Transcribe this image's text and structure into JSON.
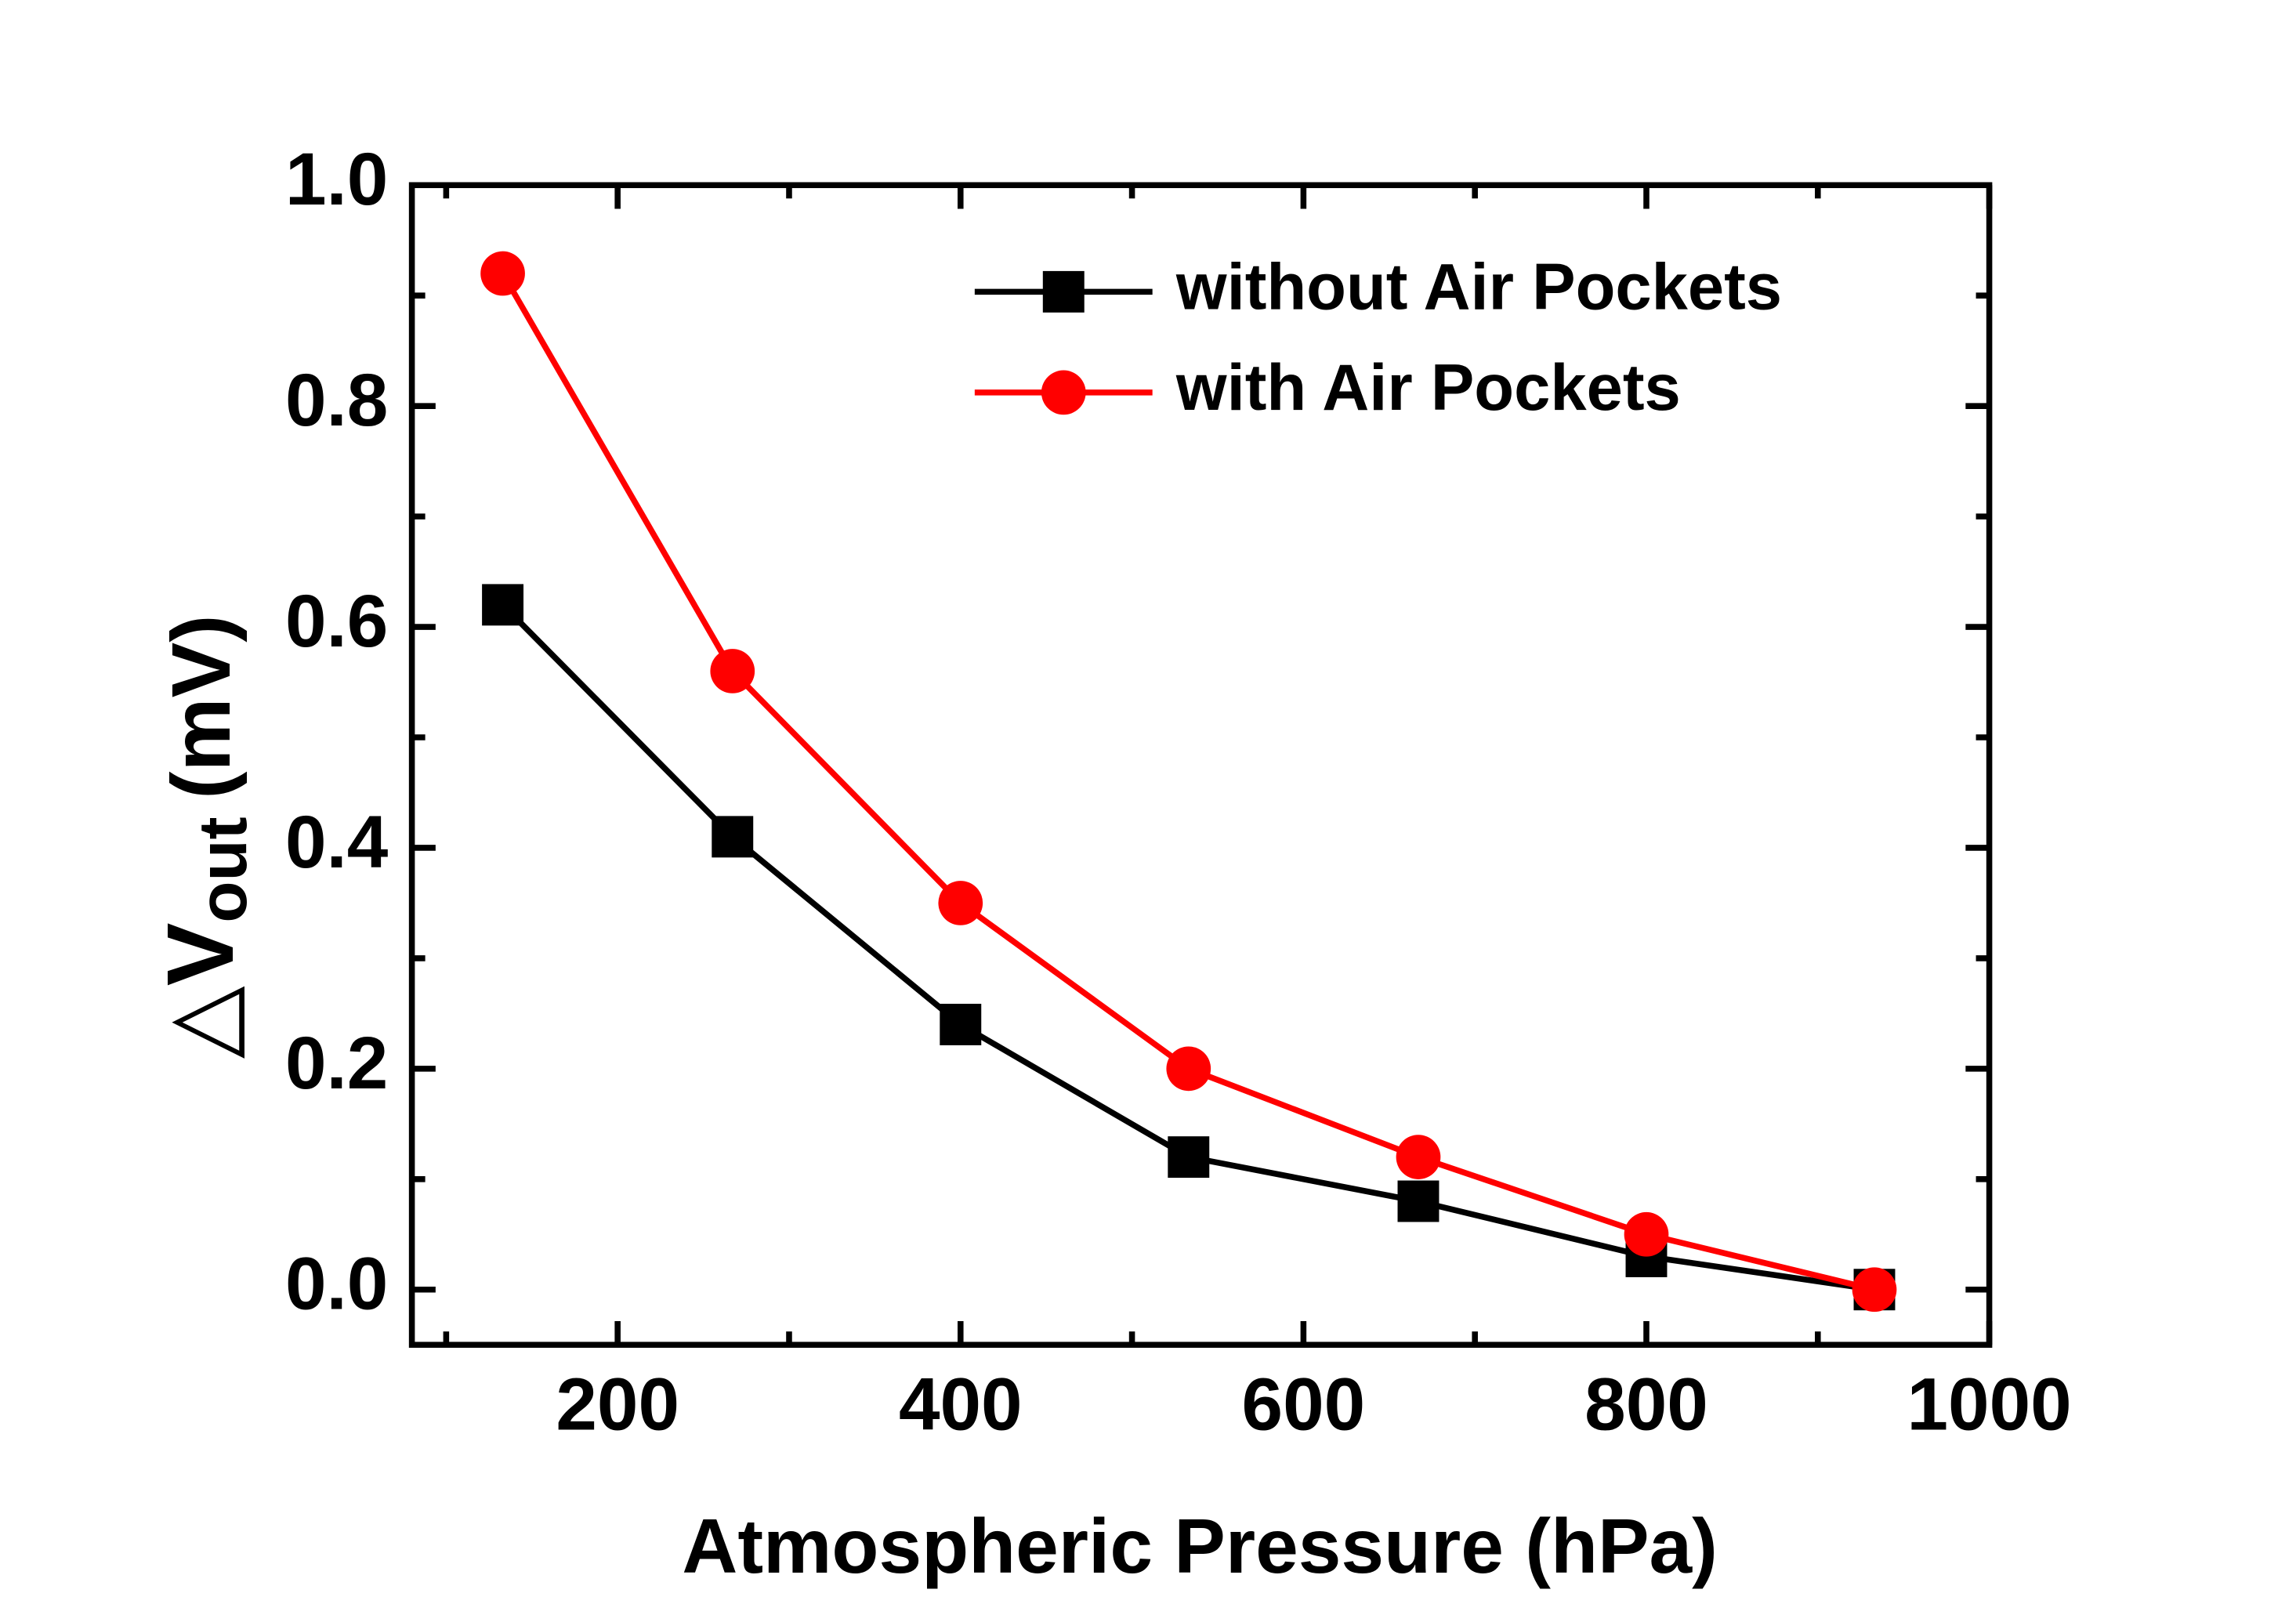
{
  "chart_data": {
    "type": "line",
    "x_label": "Atmospheric Pressure (hPa)",
    "y_label": {
      "prefix": "△V",
      "sub": "out",
      "suffix": "(mV)"
    },
    "x": [
      133,
      267,
      400,
      533,
      667,
      800,
      933
    ],
    "series": [
      {
        "name": "without Air Pockets",
        "color": "#000000",
        "marker": "square",
        "values": [
          0.62,
          0.41,
          0.24,
          0.12,
          0.08,
          0.03,
          0.0
        ]
      },
      {
        "name": "with Air Pockets",
        "color": "#ff0000",
        "marker": "circle",
        "values": [
          0.92,
          0.56,
          0.35,
          0.2,
          0.12,
          0.05,
          0.0
        ]
      }
    ],
    "xlim": [
      80,
      1000
    ],
    "ylim": [
      -0.05,
      1.0
    ],
    "xticks": [
      200,
      400,
      600,
      800,
      1000
    ],
    "yticks": [
      {
        "value": 0,
        "label": "0.0"
      },
      0.2,
      0.4,
      0.6,
      0.8,
      {
        "value": 1,
        "label": "1.0"
      }
    ],
    "legend": "upper right",
    "grid": false
  }
}
